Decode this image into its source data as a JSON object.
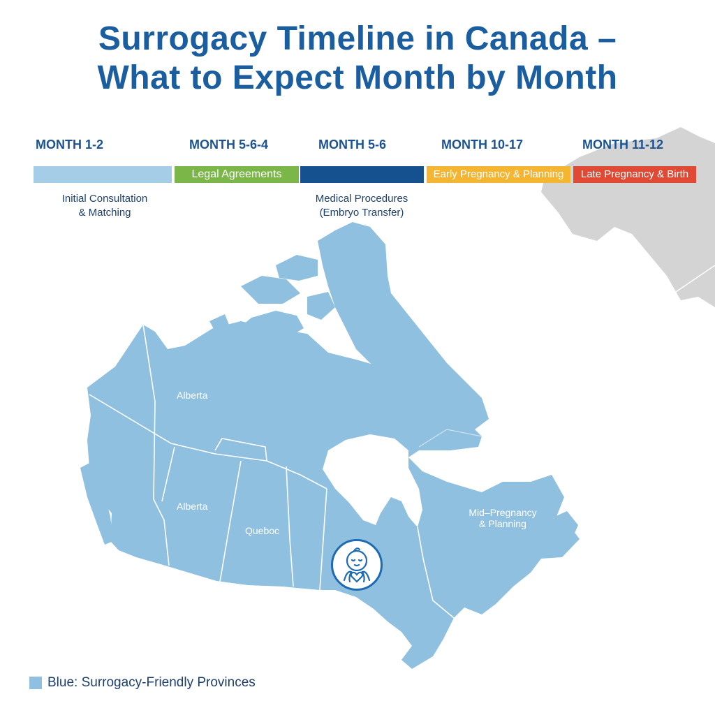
{
  "title": {
    "line1": "Surrogacy Timeline in Canada –",
    "line2": "What to Expect Month by Month"
  },
  "timeline": [
    {
      "month": "MONTH 1-2",
      "stage": "",
      "color": "#a6cde8",
      "text_color": "#ffffff"
    },
    {
      "month": "MONTH 5-6-4",
      "stage": "Legal Agreements",
      "color": "#7ab648",
      "text_color": "#ffffff"
    },
    {
      "month": "MONTH 5-6",
      "stage": "",
      "color": "#15508f",
      "text_color": "#ffffff"
    },
    {
      "month": "MONTH 10-17",
      "stage": "Early Pregnancy & Planning",
      "color": "#f4b531",
      "text_color": "#ffffff"
    },
    {
      "month": "MONTH 11-12",
      "stage": "Late Pregnancy & Birth",
      "color": "#e04a34",
      "text_color": "#ffffff"
    }
  ],
  "sublabels": {
    "first": {
      "line1": "Initial Consultation",
      "line2": "& Matching"
    },
    "third": {
      "line1": "Medical Procedures",
      "line2": "(Embryo Transfer)"
    }
  },
  "map_labels": {
    "north_west": "Alberta",
    "west": "Alberta",
    "centre": "Queboc",
    "east": {
      "line1": "Mid–Pregnancy",
      "line2": "& Planning"
    }
  },
  "map_colors": {
    "canada": "#8fc0e0",
    "neighbour": "#d4d4d4",
    "borders": "#ffffff"
  },
  "badge_icon": "baby-heart-icon",
  "legend": {
    "swatch_color": "#8fc0e0",
    "text": "Blue: Surrogacy-Friendly Provinces"
  }
}
